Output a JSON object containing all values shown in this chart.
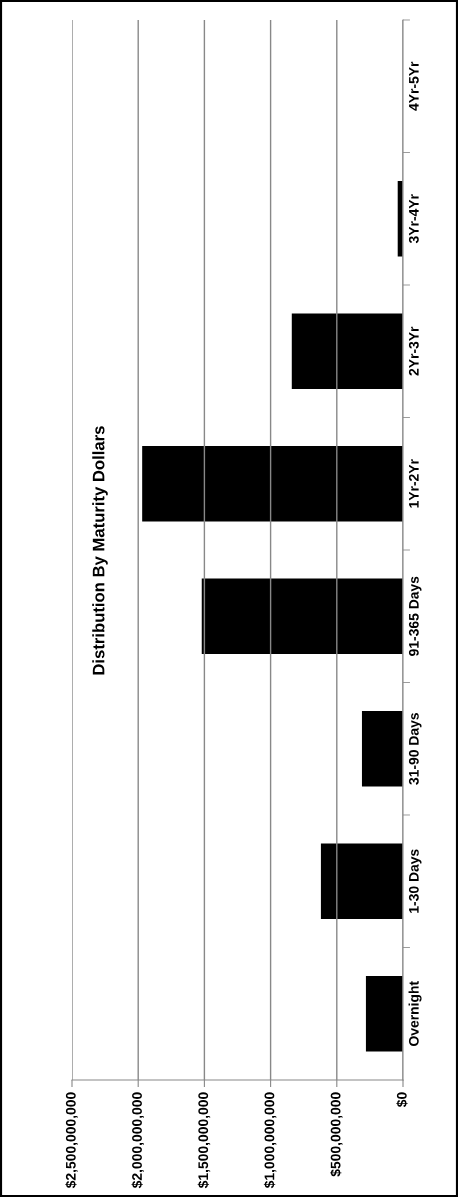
{
  "chart_data": {
    "type": "bar",
    "orientation": "horizontal",
    "title": "Distribution By Maturity Dollars",
    "categories": [
      "4Yr-5Yr",
      "3Yr-4Yr",
      "2Yr-3Yr",
      "1Yr-2Yr",
      "91-365 Days",
      "31-90 Days",
      "1-30 Days",
      "Overnight"
    ],
    "values": [
      0,
      40000000,
      840000000,
      1970000000,
      1520000000,
      310000000,
      620000000,
      280000000
    ],
    "color": "#000000",
    "xlim": [
      2500000000,
      0
    ],
    "xticks": [
      {
        "value": 2500000000,
        "label": "$2,500,000,000"
      },
      {
        "value": 2000000000,
        "label": "$2,000,000,000"
      },
      {
        "value": 1500000000,
        "label": "$1,500,000,000"
      },
      {
        "value": 1000000000,
        "label": "$1,000,000,000"
      },
      {
        "value": 500000000,
        "label": "$500,000,000"
      },
      {
        "value": 0,
        "label": "$0"
      }
    ],
    "grid": "x"
  }
}
